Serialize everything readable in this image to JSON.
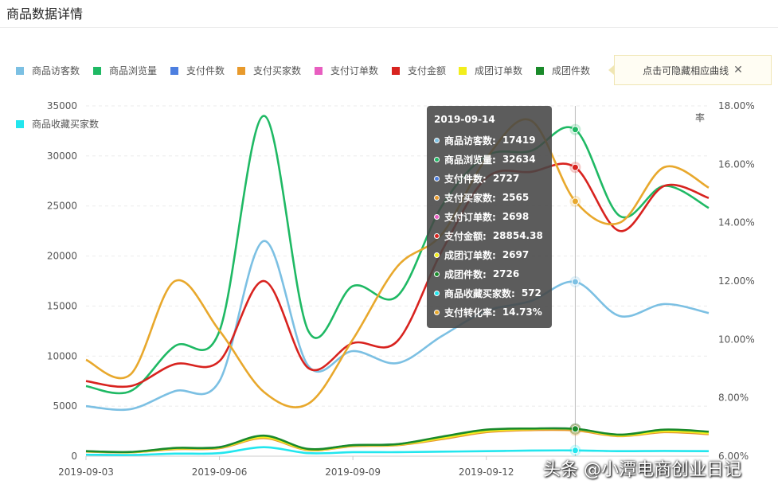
{
  "page": {
    "title": "商品数据详情"
  },
  "hint": {
    "text": "点击可隐藏相应曲线",
    "close_glyph": "✕"
  },
  "legend": [
    {
      "label": "商品访客数",
      "color": "#7cc0e3"
    },
    {
      "label": "商品浏览量",
      "color": "#1fb964"
    },
    {
      "label": "支付件数",
      "color": "#4d7fe0"
    },
    {
      "label": "支付买家数",
      "color": "#e89a2c"
    },
    {
      "label": "支付订单数",
      "color": "#e85ec0"
    },
    {
      "label": "支付金额",
      "color": "#d8231f"
    },
    {
      "label": "成团订单数",
      "color": "#f2ee1c"
    },
    {
      "label": "成团件数",
      "color": "#1a8a2a"
    },
    {
      "label": "商品收藏买家数",
      "color": "#22e6ee"
    }
  ],
  "watermark": "头条 @小潭电商创业日记",
  "tooltip": {
    "date": "2019-09-14",
    "rows": [
      {
        "name": "商品访客数:",
        "value": "17419",
        "color": "#7cc0e3"
      },
      {
        "name": "商品浏览量:",
        "value": "32634",
        "color": "#1fb964"
      },
      {
        "name": "支付件数:",
        "value": "2727",
        "color": "#4d7fe0"
      },
      {
        "name": "支付买家数:",
        "value": "2565",
        "color": "#e89a2c"
      },
      {
        "name": "支付订单数:",
        "value": "2698",
        "color": "#e85ec0"
      },
      {
        "name": "支付金额:",
        "value": "28854.38",
        "color": "#d8231f"
      },
      {
        "name": "成团订单数:",
        "value": "2697",
        "color": "#f2ee1c"
      },
      {
        "name": "成团件数:",
        "value": "2726",
        "color": "#1a8a2a"
      },
      {
        "name": "商品收藏买家数:",
        "value": "572",
        "color": "#22e6ee"
      },
      {
        "name": "支付转化率:",
        "value": "14.73%",
        "color": "#e8a82c"
      }
    ]
  },
  "chart_data": {
    "type": "line",
    "x": [
      "2019-09-03",
      "2019-09-04",
      "2019-09-05",
      "2019-09-06",
      "2019-09-07",
      "2019-09-08",
      "2019-09-09",
      "2019-09-10",
      "2019-09-11",
      "2019-09-12",
      "2019-09-13",
      "2019-09-14",
      "2019-09-15",
      "2019-09-16",
      "2019-09-17"
    ],
    "xticks": [
      "2019-09-03",
      "2019-09-06",
      "2019-09-09",
      "2019-09-12"
    ],
    "xlim": [
      "2019-09-03",
      "2019-09-17"
    ],
    "ylim": [
      0,
      35000
    ],
    "yticks": [
      "0",
      "5000",
      "10000",
      "15000",
      "20000",
      "25000",
      "30000",
      "35000"
    ],
    "y2lim": [
      6,
      18
    ],
    "y2ticks": [
      "6.00%",
      "8.00%",
      "10.00%",
      "12.00%",
      "14.00%",
      "16.00%",
      "18.00%"
    ],
    "y2label": "率",
    "grid": true,
    "highlight_x": "2019-09-14",
    "series": [
      {
        "name": "商品访客数",
        "color": "#7cc0e3",
        "axis": "left",
        "values": [
          5000,
          4700,
          6500,
          7500,
          21500,
          9000,
          10500,
          9300,
          12000,
          14500,
          15500,
          17419,
          14000,
          15200,
          14300
        ]
      },
      {
        "name": "商品浏览量",
        "color": "#1fb964",
        "axis": "left",
        "values": [
          7000,
          6500,
          11000,
          12500,
          34000,
          12500,
          17000,
          16000,
          25000,
          30000,
          30500,
          32634,
          24000,
          27000,
          24800
        ]
      },
      {
        "name": "支付件数",
        "color": "#4d7fe0",
        "axis": "left",
        "values": [
          500,
          400,
          800,
          900,
          2000,
          700,
          1100,
          1200,
          1900,
          2600,
          2750,
          2727,
          2100,
          2600,
          2400
        ]
      },
      {
        "name": "支付买家数",
        "color": "#e89a2c",
        "axis": "left",
        "values": [
          450,
          380,
          700,
          800,
          1800,
          600,
          1000,
          1100,
          1700,
          2400,
          2600,
          2565,
          2000,
          2400,
          2200
        ]
      },
      {
        "name": "支付订单数",
        "color": "#e85ec0",
        "axis": "left",
        "values": [
          480,
          390,
          760,
          860,
          1900,
          650,
          1050,
          1150,
          1800,
          2500,
          2700,
          2698,
          2050,
          2500,
          2300
        ]
      },
      {
        "name": "支付金额",
        "color": "#d8231f",
        "axis": "left",
        "values": [
          7500,
          7000,
          9200,
          9500,
          17500,
          8800,
          11300,
          11500,
          20500,
          27800,
          28400,
          28854.38,
          22500,
          27000,
          25800
        ]
      },
      {
        "name": "成团订单数",
        "color": "#f2ee1c",
        "axis": "left",
        "values": [
          480,
          390,
          760,
          860,
          1900,
          650,
          1050,
          1150,
          1800,
          2500,
          2700,
          2697,
          2050,
          2500,
          2300
        ]
      },
      {
        "name": "成团件数",
        "color": "#1a8a2a",
        "axis": "left",
        "values": [
          500,
          420,
          820,
          900,
          2050,
          720,
          1100,
          1200,
          1950,
          2650,
          2760,
          2726,
          2150,
          2650,
          2450
        ]
      },
      {
        "name": "商品收藏买家数",
        "color": "#22e6ee",
        "axis": "left",
        "values": [
          150,
          120,
          250,
          300,
          900,
          300,
          400,
          400,
          450,
          500,
          560,
          572,
          500,
          520,
          500
        ]
      },
      {
        "name": "支付转化率",
        "color": "#e8a82c",
        "axis": "right",
        "values": [
          9.3,
          8.8,
          12.0,
          10.3,
          8.2,
          7.8,
          10.0,
          12.5,
          13.6,
          16.2,
          17.5,
          14.73,
          14.0,
          15.9,
          15.2
        ]
      }
    ]
  }
}
